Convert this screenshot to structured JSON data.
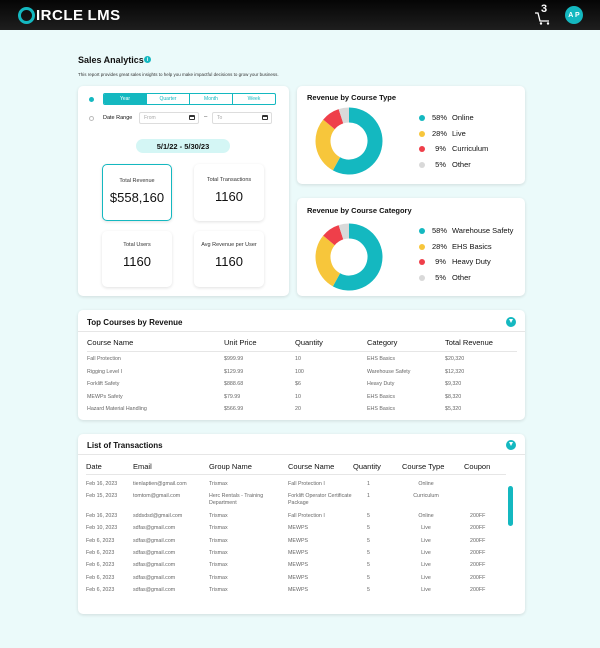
{
  "header": {
    "logo_main": "IRCLE",
    "logo_suffix": "LMS",
    "cart_count": "3",
    "avatar_initials": "A P"
  },
  "page": {
    "title": "Sales Analytics",
    "info_icon": "i",
    "subtitle": "This report provides great sales insights to help you make impactful decisions to grow your business."
  },
  "filters": {
    "periods": [
      "Year",
      "Quarter",
      "Month",
      "Week"
    ],
    "active_period": "Year",
    "date_range_label": "Date Range",
    "from_placeholder": "From",
    "to_placeholder": "To",
    "range_separator": "–",
    "range_value": "5/1/22 - 5/30/23"
  },
  "stats": [
    {
      "label": "Total Revenue",
      "value": "$558,160"
    },
    {
      "label": "Total Transactions",
      "value": "1160"
    },
    {
      "label": "Total Users",
      "value": "1160"
    },
    {
      "label": "Avg Revenue per User",
      "value": "1160"
    }
  ],
  "colors": {
    "accent": "#14b8c0",
    "teal": "#14b8c0",
    "yellow": "#f7c63b",
    "red": "#ef3f4a",
    "gray": "#d9d9d9"
  },
  "revenue_by_type": {
    "title": "Revenue by Course Type",
    "items": [
      {
        "pct": "58%",
        "label": "Online",
        "value": 58,
        "color": "#14b8c0"
      },
      {
        "pct": "28%",
        "label": "Live",
        "value": 28,
        "color": "#f7c63b"
      },
      {
        "pct": "9%",
        "label": "Curriculum",
        "value": 9,
        "color": "#ef3f4a"
      },
      {
        "pct": "5%",
        "label": "Other",
        "value": 5,
        "color": "#d9d9d9"
      }
    ]
  },
  "revenue_by_category": {
    "title": "Revenue by Course Category",
    "items": [
      {
        "pct": "58%",
        "label": "Warehouse Safety",
        "value": 58,
        "color": "#14b8c0"
      },
      {
        "pct": "28%",
        "label": "EHS Basics",
        "value": 28,
        "color": "#f7c63b"
      },
      {
        "pct": "9%",
        "label": "Heavy Duty",
        "value": 9,
        "color": "#ef3f4a"
      },
      {
        "pct": "5%",
        "label": "Other",
        "value": 5,
        "color": "#d9d9d9"
      }
    ]
  },
  "top_courses": {
    "title": "Top Courses by Revenue",
    "columns": [
      "Course Name",
      "Unit Price",
      "Quantity",
      "Category",
      "Total Revenue"
    ],
    "rows": [
      [
        "Fall Protection",
        "$999.99",
        "10",
        "EHS Basics",
        "$20,320"
      ],
      [
        "Rigging Level I",
        "$129.99",
        "100",
        "Warehouse Safety",
        "$12,320"
      ],
      [
        "Forklift Safety",
        "$888.68",
        "$6",
        "Heavy Duty",
        "$9,320"
      ],
      [
        "MEWPs Safety",
        "$79.99",
        "10",
        "EHS Basics",
        "$8,320"
      ],
      [
        "Hazard Material Handling",
        "$566.99",
        "20",
        "EHS Basics",
        "$5,320"
      ]
    ]
  },
  "transactions": {
    "title": "List of Transactions",
    "columns": [
      "Date",
      "Email",
      "Group Name",
      "Course Name",
      "Quantity",
      "Course Type",
      "Coupon"
    ],
    "rows": [
      [
        "Feb 16, 2023",
        "tienlaptien@gmail.com",
        "Trismax",
        "Fall Protection I",
        "1",
        "Online",
        ""
      ],
      [
        "Feb 15, 2023",
        "tomtom@gmail.com",
        "Herc Rentals - Training Department",
        "Forklift Operator Certificate Package",
        "1",
        "Curriculum",
        ""
      ],
      [
        "Feb 16, 2023",
        "sddsdsd@gmail.com",
        "Trismax",
        "Fall Protection I",
        "5",
        "Online",
        "200FF"
      ],
      [
        "Feb 10, 2023",
        "sdfas@gmail.com",
        "Trismax",
        "MEWPS",
        "5",
        "Live",
        "200FF"
      ],
      [
        "Feb 6, 2023",
        "sdfas@gmail.com",
        "Trismax",
        "MEWPS",
        "5",
        "Live",
        "200FF"
      ],
      [
        "Feb 6, 2023",
        "sdfas@gmail.com",
        "Trismax",
        "MEWPS",
        "5",
        "Live",
        "200FF"
      ],
      [
        "Feb 6, 2023",
        "sdfas@gmail.com",
        "Trismax",
        "MEWPS",
        "5",
        "Live",
        "200FF"
      ],
      [
        "Feb 6, 2023",
        "sdfas@gmail.com",
        "Trismax",
        "MEWPS",
        "5",
        "Live",
        "200FF"
      ],
      [
        "Feb 6, 2023",
        "sdfas@gmail.com",
        "Trismax",
        "MEWPS",
        "5",
        "Live",
        "200FF"
      ]
    ]
  }
}
